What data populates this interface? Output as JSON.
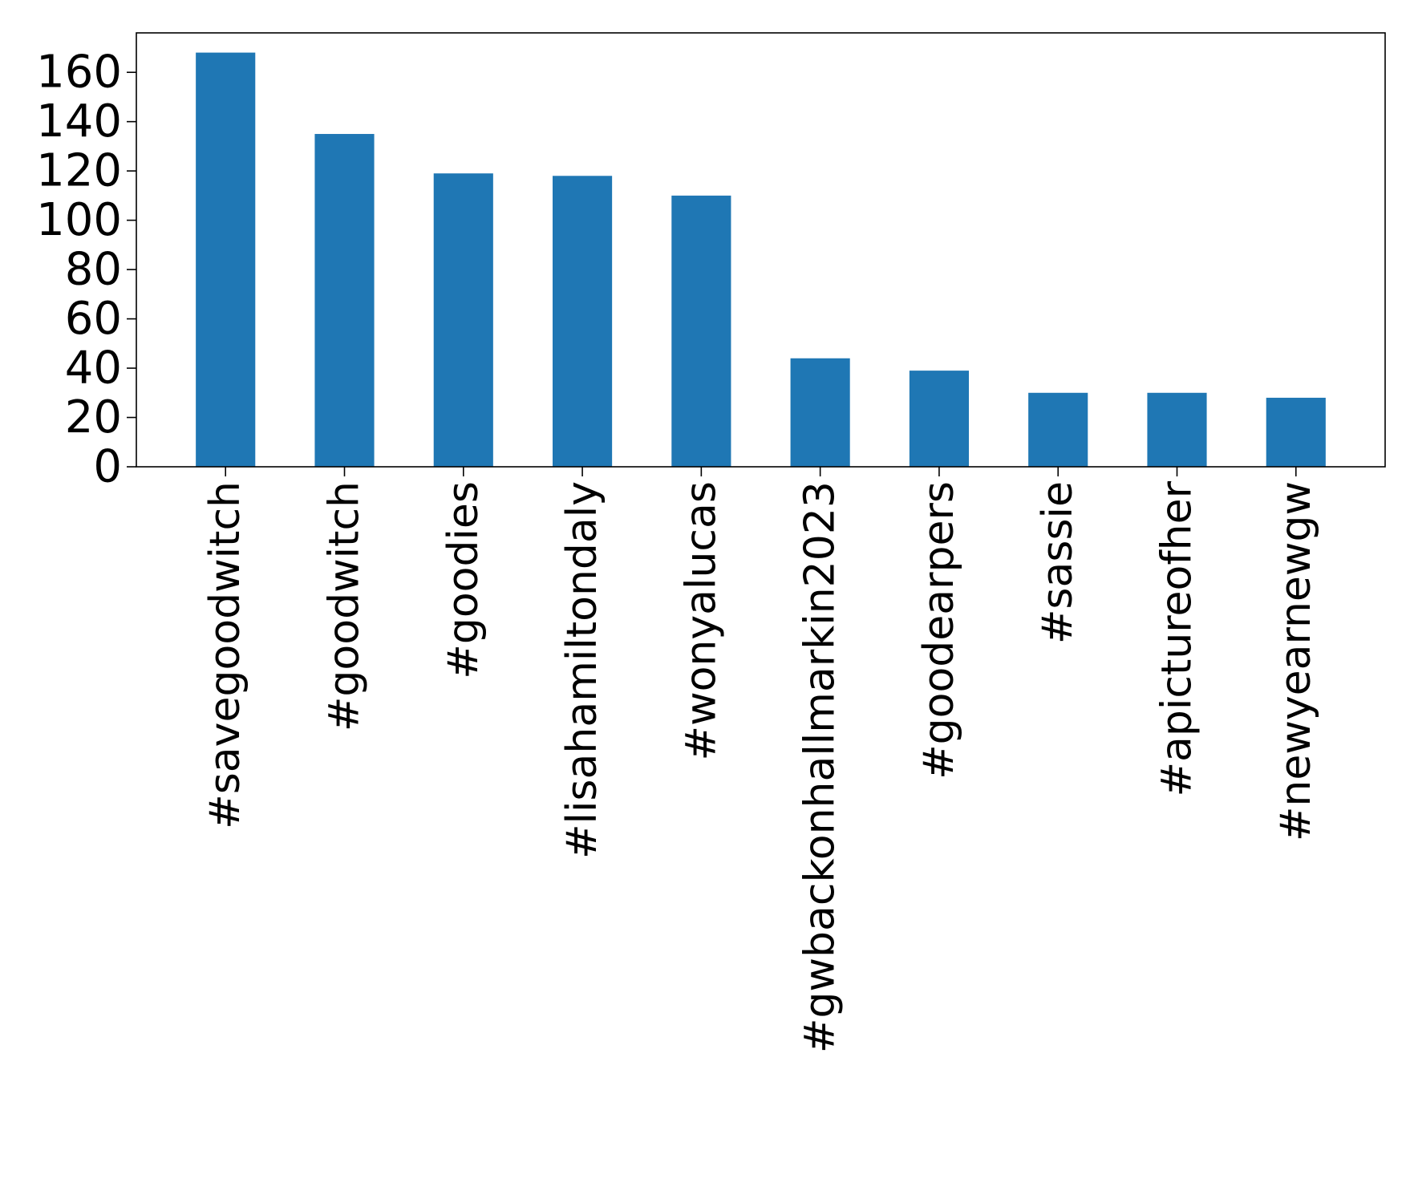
{
  "chart_data": {
    "type": "bar",
    "title": "",
    "xlabel": "",
    "ylabel": "",
    "categories": [
      "#savegoodwitch",
      "#goodwitch",
      "#goodies",
      "#lisahamiltondaly",
      "#wonyalucas",
      "#gwbackonhallmarkin2023",
      "#goodearpers",
      "#sassie",
      "#apictureofher",
      "#newyearnewgw"
    ],
    "values": [
      168,
      135,
      119,
      118,
      110,
      44,
      39,
      30,
      30,
      28
    ],
    "ylim": [
      0,
      176
    ],
    "yticks": [
      0,
      20,
      40,
      60,
      80,
      100,
      120,
      140,
      160
    ],
    "bar_color": "#1f77b4",
    "grid": false,
    "legend": "none"
  }
}
